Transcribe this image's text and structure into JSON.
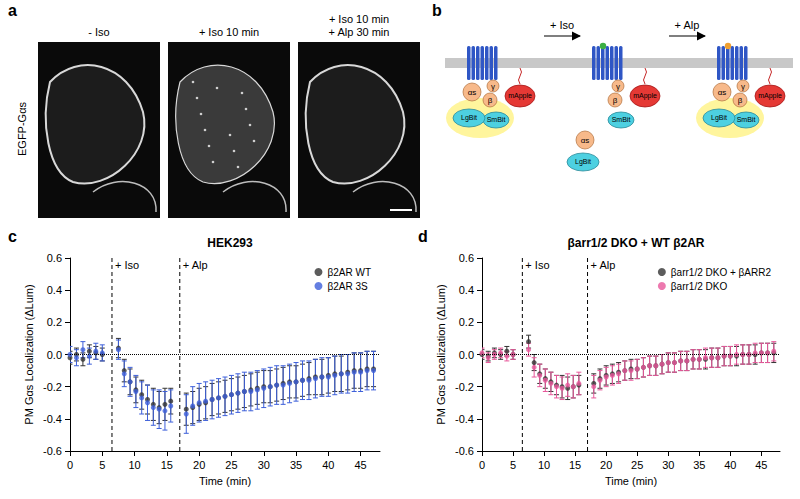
{
  "panel_a": {
    "letter": "a",
    "channel": "EGFP-Gαs",
    "conditions": [
      [
        "- Iso"
      ],
      [
        "+ Iso 10 min"
      ],
      [
        "+ Iso 10 min",
        "+ Alp 30 min"
      ]
    ]
  },
  "panel_b": {
    "letter": "b",
    "steps": [
      "+ Iso",
      "+ Alp"
    ],
    "labels": {
      "alpha": "αs",
      "gamma": "γ",
      "beta": "β",
      "lgbit": "LgBit",
      "smbit": "SmBit",
      "mapple": "mApple"
    }
  },
  "chart_data": [
    {
      "type": "scatter",
      "panel": "c",
      "title": "HEK293",
      "x_label": "Time (min)",
      "y_label": "PM Gαs Localization (ΔLum)",
      "xlim": [
        0,
        48
      ],
      "xticks": [
        0,
        5,
        10,
        15,
        20,
        25,
        30,
        35,
        40,
        45
      ],
      "ylim": [
        -0.6,
        0.6
      ],
      "yticks": [
        -0.6,
        -0.4,
        -0.2,
        {
          "value": 0,
          "label": "0.0"
        },
        0.2,
        0.4,
        0.6
      ],
      "grid": false,
      "legend": "top-right",
      "hline": 0,
      "annotations": [
        {
          "x": 6.5,
          "label": "+ Iso"
        },
        {
          "x": 17,
          "label": "+ Alp"
        }
      ],
      "x": [
        0,
        1,
        2,
        3,
        4,
        5,
        7.5,
        8.4,
        9.3,
        10.2,
        11.1,
        12,
        12.9,
        13.8,
        14.7,
        15.6,
        18,
        19,
        20,
        21,
        22,
        23,
        24,
        25,
        26,
        27,
        28,
        29,
        30,
        31,
        32,
        33,
        34,
        35,
        36,
        37,
        38,
        39,
        40,
        41,
        42,
        43,
        44,
        45,
        46,
        47
      ],
      "series": [
        {
          "name": "β2AR WT",
          "color": "#333333",
          "marker": "circle",
          "values": [
            -0.02,
            0.0,
            -0.03,
            0.02,
            0.01,
            0.0,
            0.04,
            -0.1,
            -0.17,
            -0.22,
            -0.25,
            -0.28,
            -0.31,
            -0.33,
            -0.31,
            -0.29,
            -0.34,
            -0.33,
            -0.31,
            -0.3,
            -0.28,
            -0.27,
            -0.26,
            -0.25,
            -0.24,
            -0.23,
            -0.22,
            -0.21,
            -0.2,
            -0.2,
            -0.19,
            -0.18,
            -0.17,
            -0.17,
            -0.16,
            -0.15,
            -0.14,
            -0.14,
            -0.13,
            -0.12,
            -0.12,
            -0.11,
            -0.1,
            -0.1,
            -0.09,
            -0.09
          ],
          "errors": [
            0.04,
            0.04,
            0.04,
            0.04,
            0.04,
            0.04,
            0.06,
            0.07,
            0.08,
            0.08,
            0.09,
            0.09,
            0.1,
            0.1,
            0.1,
            0.08,
            0.1,
            0.1,
            0.1,
            0.1,
            0.1,
            0.1,
            0.1,
            0.1,
            0.1,
            0.1,
            0.1,
            0.1,
            0.1,
            0.1,
            0.1,
            0.1,
            0.1,
            0.1,
            0.1,
            0.1,
            0.11,
            0.11,
            0.11,
            0.11,
            0.11,
            0.11,
            0.11,
            0.11,
            0.11,
            0.11
          ]
        },
        {
          "name": "β2AR 3S",
          "color": "#3d5fd9",
          "marker": "circle",
          "values": [
            0.0,
            -0.02,
            0.03,
            -0.01,
            0.02,
            0.01,
            0.03,
            -0.12,
            -0.17,
            -0.23,
            -0.27,
            -0.3,
            -0.33,
            -0.34,
            -0.35,
            -0.32,
            -0.37,
            -0.32,
            -0.3,
            -0.29,
            -0.28,
            -0.27,
            -0.26,
            -0.25,
            -0.24,
            -0.23,
            -0.23,
            -0.22,
            -0.21,
            -0.2,
            -0.19,
            -0.19,
            -0.18,
            -0.17,
            -0.16,
            -0.16,
            -0.15,
            -0.14,
            -0.14,
            -0.13,
            -0.12,
            -0.12,
            -0.11,
            -0.11,
            -0.1,
            -0.1
          ],
          "errors": [
            0.05,
            0.05,
            0.05,
            0.05,
            0.05,
            0.05,
            0.06,
            0.08,
            0.09,
            0.1,
            0.1,
            0.11,
            0.11,
            0.12,
            0.12,
            0.1,
            0.12,
            0.12,
            0.12,
            0.12,
            0.12,
            0.12,
            0.12,
            0.12,
            0.12,
            0.12,
            0.12,
            0.12,
            0.12,
            0.12,
            0.12,
            0.12,
            0.12,
            0.12,
            0.12,
            0.12,
            0.12,
            0.12,
            0.12,
            0.12,
            0.12,
            0.12,
            0.12,
            0.12,
            0.12,
            0.12
          ]
        }
      ]
    },
    {
      "type": "scatter",
      "panel": "d",
      "title": "βarr1/2 DKO + WT β2AR",
      "x_label": "Time (min)",
      "y_label": "PM Gαs Localization (ΔLum)",
      "xlim": [
        0,
        48
      ],
      "xticks": [
        0,
        5,
        10,
        15,
        20,
        25,
        30,
        35,
        40,
        45
      ],
      "ylim": [
        -0.6,
        0.6
      ],
      "yticks": [
        -0.6,
        -0.4,
        -0.2,
        {
          "value": 0,
          "label": "0.0"
        },
        0.2,
        0.4,
        0.6
      ],
      "grid": false,
      "legend": "top-right",
      "hline": 0,
      "annotations": [
        {
          "x": 6.5,
          "label": "+ Iso"
        },
        {
          "x": 17,
          "label": "+ Alp"
        }
      ],
      "x": [
        0,
        1,
        2,
        3,
        4,
        5,
        7.5,
        8.4,
        9.3,
        10.2,
        11.1,
        12,
        12.9,
        13.8,
        14.7,
        15.6,
        18,
        19,
        20,
        21,
        22,
        23,
        24,
        25,
        26,
        27,
        28,
        29,
        30,
        31,
        32,
        33,
        34,
        35,
        36,
        37,
        38,
        39,
        40,
        41,
        42,
        43,
        44,
        45,
        46,
        47
      ],
      "series": [
        {
          "name": "βarr1/2 DKO + βARR2",
          "color": "#333333",
          "marker": "circle",
          "values": [
            0.0,
            -0.01,
            0.01,
            0.0,
            0.02,
            0.0,
            0.08,
            -0.05,
            -0.12,
            -0.15,
            -0.17,
            -0.19,
            -0.2,
            -0.21,
            -0.2,
            -0.19,
            -0.18,
            -0.15,
            -0.13,
            -0.12,
            -0.11,
            -0.1,
            -0.09,
            -0.09,
            -0.08,
            -0.07,
            -0.07,
            -0.06,
            -0.05,
            -0.05,
            -0.04,
            -0.04,
            -0.03,
            -0.03,
            -0.03,
            -0.02,
            -0.02,
            -0.01,
            -0.01,
            -0.01,
            0.0,
            0.0,
            0.0,
            0.01,
            0.01,
            0.01
          ],
          "errors": [
            0.03,
            0.03,
            0.03,
            0.03,
            0.03,
            0.03,
            0.04,
            0.05,
            0.06,
            0.06,
            0.06,
            0.06,
            0.07,
            0.07,
            0.07,
            0.06,
            0.06,
            0.06,
            0.06,
            0.06,
            0.06,
            0.06,
            0.06,
            0.06,
            0.06,
            0.06,
            0.06,
            0.06,
            0.06,
            0.06,
            0.06,
            0.06,
            0.06,
            0.06,
            0.06,
            0.06,
            0.06,
            0.06,
            0.06,
            0.06,
            0.06,
            0.06,
            0.06,
            0.06,
            0.06,
            0.06
          ]
        },
        {
          "name": "βarr1/2 DKO",
          "color": "#e8589b",
          "marker": "circle",
          "values": [
            0.01,
            -0.02,
            0.0,
            0.01,
            -0.01,
            0.0,
            0.03,
            -0.08,
            -0.13,
            -0.16,
            -0.18,
            -0.2,
            -0.21,
            -0.19,
            -0.2,
            -0.18,
            -0.2,
            -0.16,
            -0.14,
            -0.13,
            -0.12,
            -0.1,
            -0.1,
            -0.09,
            -0.08,
            -0.07,
            -0.07,
            -0.06,
            -0.05,
            -0.05,
            -0.04,
            -0.04,
            -0.03,
            -0.03,
            -0.02,
            -0.02,
            -0.02,
            -0.01,
            -0.01,
            0.0,
            0.0,
            0.0,
            0.01,
            0.01,
            0.01,
            0.02
          ],
          "errors": [
            0.03,
            0.03,
            0.03,
            0.03,
            0.03,
            0.03,
            0.04,
            0.06,
            0.07,
            0.07,
            0.07,
            0.07,
            0.07,
            0.07,
            0.07,
            0.07,
            0.07,
            0.06,
            0.06,
            0.06,
            0.06,
            0.06,
            0.06,
            0.06,
            0.06,
            0.06,
            0.06,
            0.06,
            0.06,
            0.06,
            0.06,
            0.06,
            0.06,
            0.06,
            0.06,
            0.06,
            0.06,
            0.06,
            0.06,
            0.06,
            0.06,
            0.06,
            0.06,
            0.06,
            0.06,
            0.06
          ]
        }
      ]
    }
  ]
}
